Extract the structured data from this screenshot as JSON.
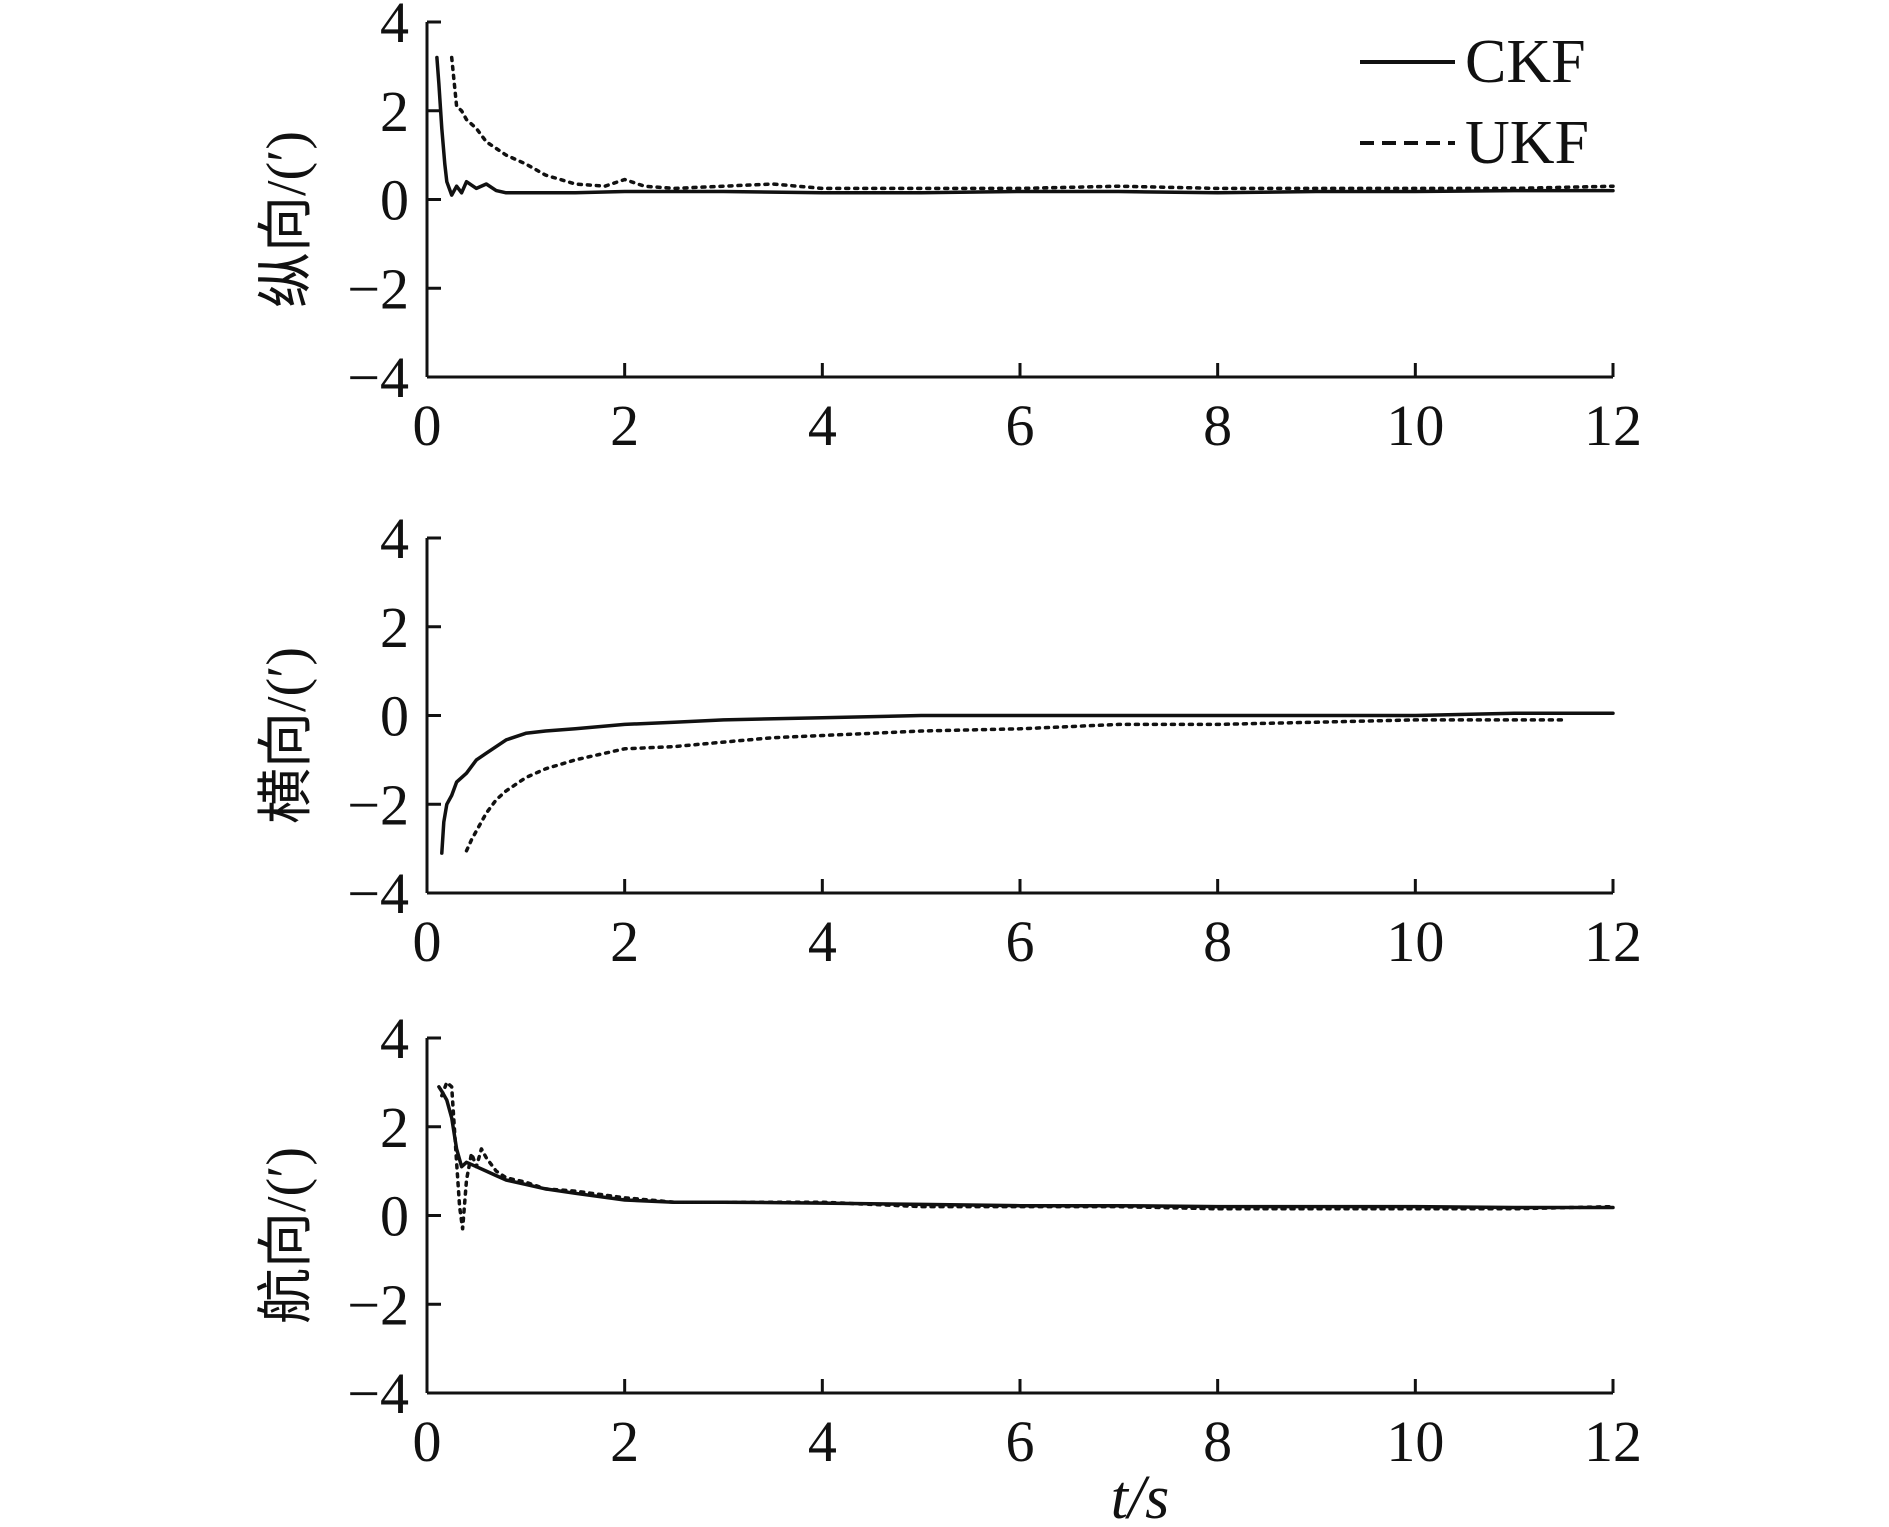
{
  "chart_data": [
    {
      "type": "line",
      "ylabel": "纵向/(′)",
      "xlabel": "",
      "xlim": [
        0,
        12
      ],
      "ylim": [
        -4,
        4
      ],
      "xticks": [
        0,
        2,
        4,
        6,
        8,
        10,
        12
      ],
      "yticks": [
        -4,
        -2,
        0,
        2,
        4
      ],
      "xtick_labels": [
        "0",
        "2",
        "4",
        "6",
        "8",
        "10",
        "12"
      ],
      "ytick_labels": [
        "−4",
        "−2",
        "0",
        "2",
        "4"
      ],
      "legend": {
        "position": "top-right",
        "entries": [
          "CKF",
          "UKF"
        ]
      },
      "series": [
        {
          "name": "CKF",
          "style": "solid",
          "x": [
            0.1,
            0.12,
            0.15,
            0.18,
            0.2,
            0.25,
            0.3,
            0.35,
            0.4,
            0.5,
            0.6,
            0.7,
            0.8,
            1.0,
            1.5,
            2,
            3,
            4,
            5,
            6,
            7,
            8,
            9,
            10,
            11,
            12
          ],
          "y": [
            3.2,
            2.6,
            1.6,
            0.8,
            0.4,
            0.1,
            0.3,
            0.15,
            0.4,
            0.25,
            0.35,
            0.2,
            0.15,
            0.15,
            0.15,
            0.18,
            0.18,
            0.15,
            0.15,
            0.18,
            0.18,
            0.15,
            0.18,
            0.18,
            0.2,
            0.2
          ]
        },
        {
          "name": "UKF",
          "style": "dotted",
          "x": [
            0.25,
            0.3,
            0.35,
            0.4,
            0.5,
            0.6,
            0.8,
            1.0,
            1.2,
            1.5,
            1.8,
            2.0,
            2.2,
            2.5,
            3,
            3.5,
            4,
            5,
            6,
            7,
            8,
            9,
            10,
            11,
            12
          ],
          "y": [
            3.2,
            2.1,
            2.0,
            1.8,
            1.6,
            1.3,
            1.0,
            0.8,
            0.55,
            0.35,
            0.3,
            0.45,
            0.3,
            0.25,
            0.3,
            0.35,
            0.25,
            0.25,
            0.25,
            0.3,
            0.25,
            0.25,
            0.25,
            0.25,
            0.3
          ]
        }
      ]
    },
    {
      "type": "line",
      "ylabel": "横向/(′)",
      "xlabel": "",
      "xlim": [
        0,
        12
      ],
      "ylim": [
        -4,
        4
      ],
      "xticks": [
        0,
        2,
        4,
        6,
        8,
        10,
        12
      ],
      "yticks": [
        -4,
        -2,
        0,
        2,
        4
      ],
      "xtick_labels": [
        "0",
        "2",
        "4",
        "6",
        "8",
        "10",
        "12"
      ],
      "ytick_labels": [
        "−4",
        "−2",
        "0",
        "2",
        "4"
      ],
      "series": [
        {
          "name": "CKF",
          "style": "solid",
          "x": [
            0.15,
            0.17,
            0.2,
            0.25,
            0.3,
            0.4,
            0.5,
            0.6,
            0.7,
            0.8,
            1.0,
            1.2,
            1.5,
            2,
            2.5,
            3,
            4,
            5,
            6,
            7,
            8,
            9,
            10,
            11,
            12
          ],
          "y": [
            -3.1,
            -2.4,
            -2.0,
            -1.8,
            -1.5,
            -1.3,
            -1.0,
            -0.85,
            -0.7,
            -0.55,
            -0.4,
            -0.35,
            -0.3,
            -0.2,
            -0.15,
            -0.1,
            -0.05,
            0.0,
            0.0,
            0.0,
            0.0,
            0.0,
            0.0,
            0.05,
            0.05
          ]
        },
        {
          "name": "UKF",
          "style": "dotted",
          "x": [
            0.4,
            0.45,
            0.5,
            0.6,
            0.7,
            0.8,
            1.0,
            1.2,
            1.5,
            1.8,
            2.0,
            2.5,
            3,
            3.5,
            4,
            4.5,
            5,
            6,
            7,
            8,
            9,
            10,
            11,
            11.5
          ],
          "y": [
            -3.05,
            -2.8,
            -2.6,
            -2.2,
            -1.9,
            -1.7,
            -1.4,
            -1.2,
            -1.0,
            -0.85,
            -0.75,
            -0.7,
            -0.6,
            -0.5,
            -0.45,
            -0.4,
            -0.35,
            -0.3,
            -0.2,
            -0.2,
            -0.15,
            -0.1,
            -0.1,
            -0.1
          ]
        }
      ]
    },
    {
      "type": "line",
      "ylabel": "航向/(′)",
      "xlabel": "t/s",
      "xlim": [
        0,
        12
      ],
      "ylim": [
        -4,
        4
      ],
      "xticks": [
        0,
        2,
        4,
        6,
        8,
        10,
        12
      ],
      "yticks": [
        -4,
        -2,
        0,
        2,
        4
      ],
      "xtick_labels": [
        "0",
        "2",
        "4",
        "6",
        "8",
        "10",
        "12"
      ],
      "ytick_labels": [
        "−4",
        "−2",
        "0",
        "2",
        "4"
      ],
      "series": [
        {
          "name": "CKF",
          "style": "solid",
          "x": [
            0.12,
            0.15,
            0.2,
            0.25,
            0.3,
            0.35,
            0.4,
            0.5,
            0.6,
            0.7,
            0.8,
            1.0,
            1.2,
            1.5,
            2,
            2.5,
            3,
            4,
            5,
            6,
            7,
            8,
            9,
            10,
            11,
            12
          ],
          "y": [
            2.9,
            2.8,
            2.6,
            2.2,
            1.5,
            1.1,
            1.2,
            1.1,
            1.0,
            0.9,
            0.8,
            0.7,
            0.6,
            0.5,
            0.35,
            0.3,
            0.3,
            0.28,
            0.25,
            0.22,
            0.22,
            0.2,
            0.2,
            0.2,
            0.18,
            0.18
          ]
        },
        {
          "name": "UKF",
          "style": "dotted",
          "x": [
            0.15,
            0.2,
            0.25,
            0.3,
            0.33,
            0.36,
            0.4,
            0.45,
            0.5,
            0.55,
            0.6,
            0.7,
            0.8,
            1.0,
            1.2,
            1.5,
            2,
            2.5,
            3,
            4,
            5,
            6,
            7,
            8,
            9,
            10,
            11,
            12
          ],
          "y": [
            2.7,
            3.0,
            2.9,
            1.2,
            0.2,
            -0.3,
            0.8,
            1.4,
            1.1,
            1.5,
            1.3,
            1.0,
            0.85,
            0.75,
            0.6,
            0.55,
            0.4,
            0.3,
            0.3,
            0.3,
            0.2,
            0.2,
            0.2,
            0.15,
            0.15,
            0.15,
            0.15,
            0.2
          ]
        }
      ]
    }
  ]
}
